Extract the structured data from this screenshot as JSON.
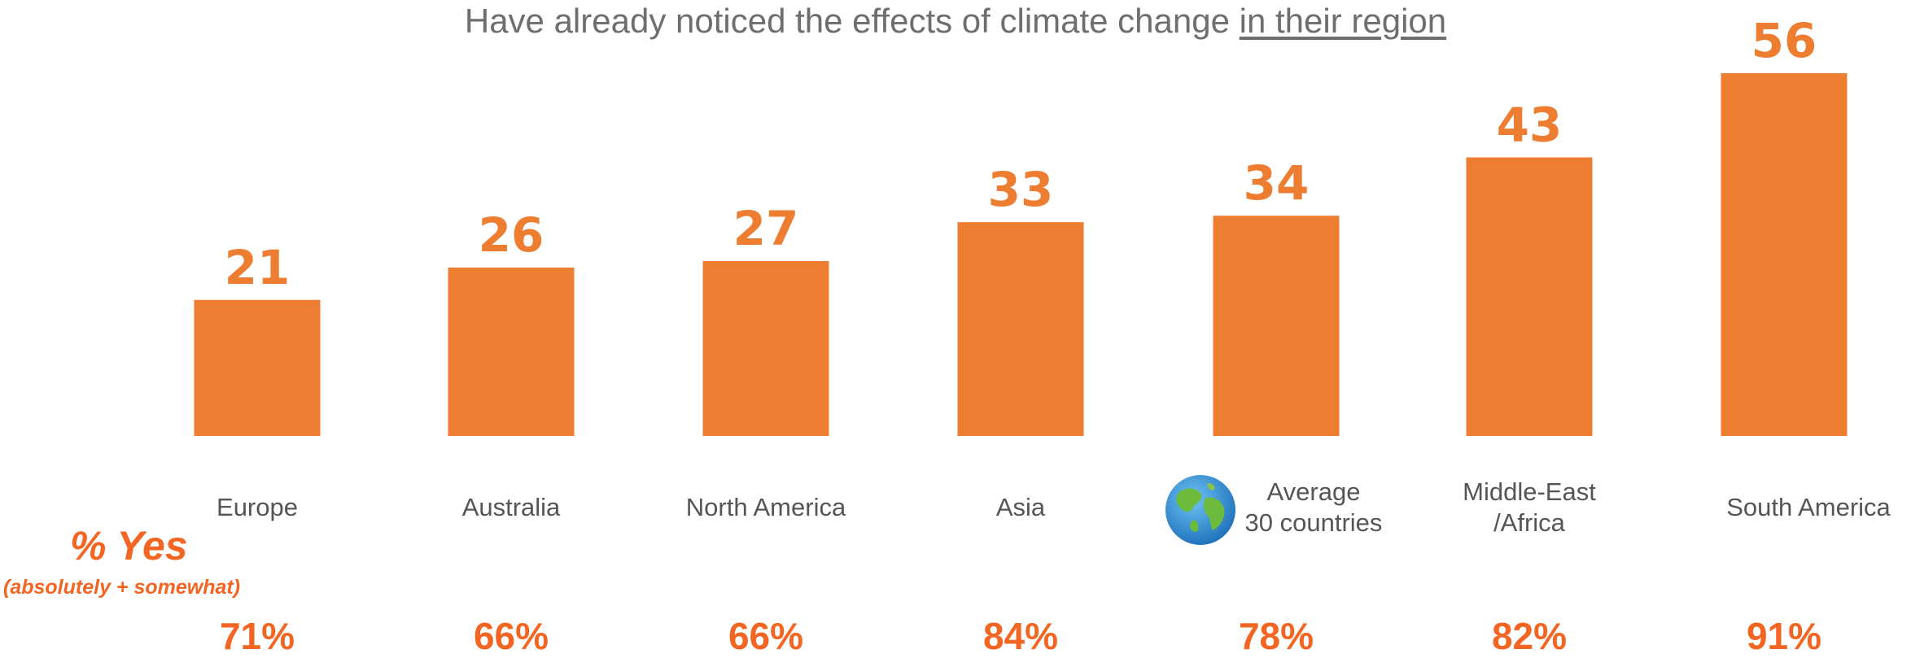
{
  "title": {
    "prefix": "Have already noticed the effects of climate change ",
    "underlined": "in their region"
  },
  "chart_data": {
    "type": "bar",
    "categories": [
      "Europe",
      "Australia",
      "North America",
      "Asia",
      "Average\n30 countries",
      "Middle-East\n/Africa",
      "South America"
    ],
    "values": [
      21,
      26,
      27,
      33,
      34,
      43,
      56
    ],
    "percent_yes": [
      "71%",
      "66%",
      "66%",
      "84%",
      "78%",
      "82%",
      "91%"
    ],
    "bar_color": "#ed7d31",
    "label_color": "#ed7d31",
    "ylim": [
      0,
      56
    ],
    "grid": false,
    "legend": "none"
  },
  "yes_label": {
    "main": "% Yes",
    "sub": "(absolutely + somewhat)"
  },
  "icons": {
    "average": "globe-icon"
  }
}
